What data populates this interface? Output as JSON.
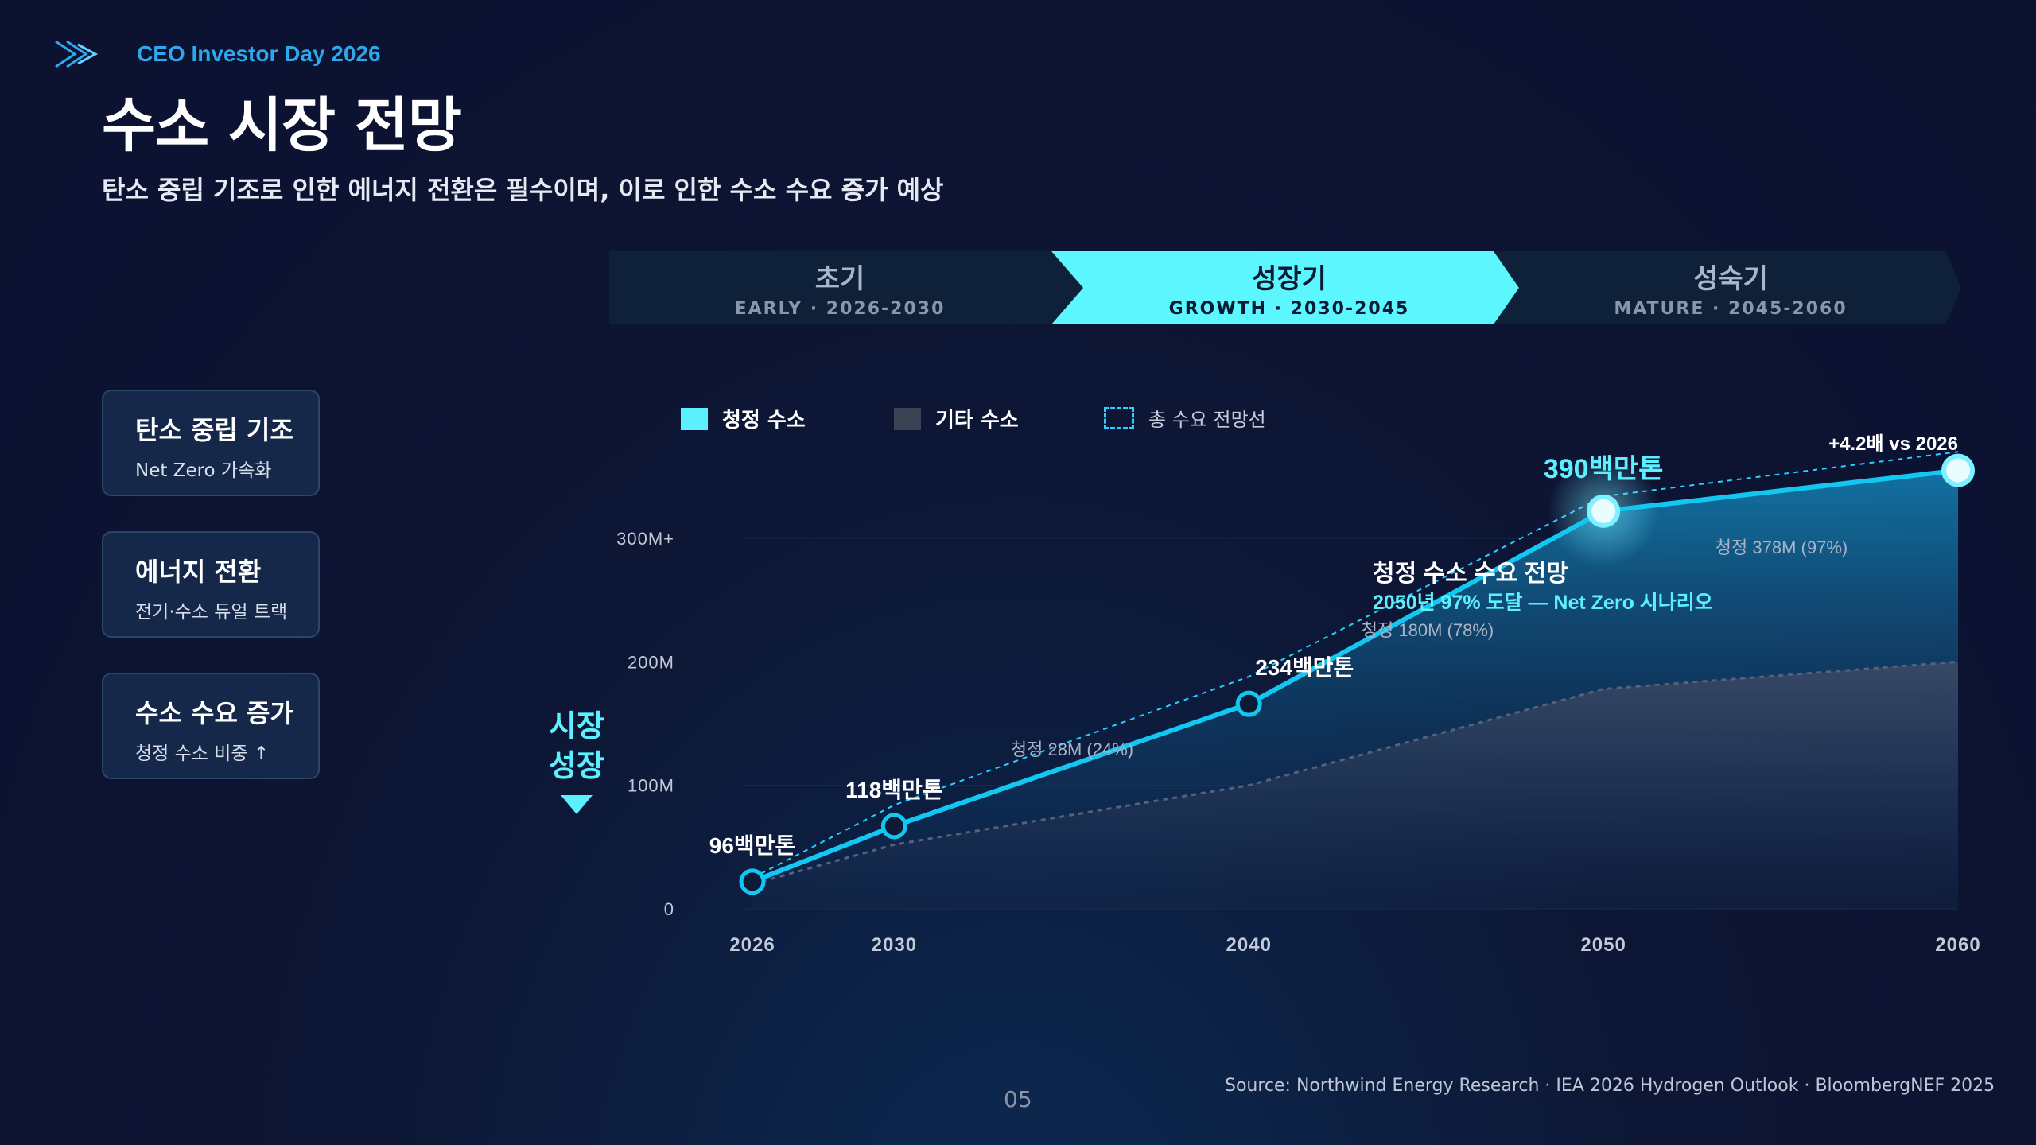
{
  "header": {
    "eyebrow": "CEO Investor Day 2026",
    "title": "수소 시장 전망",
    "subtitle": "탄소 중립 기조로 인한 에너지 전환은 필수이며, 이로 인한 수소 수요 증가 예상"
  },
  "phases": [
    {
      "name": "초기",
      "sub": "EARLY · 2026-2030",
      "active": false
    },
    {
      "name": "성장기",
      "sub": "GROWTH · 2030-2045",
      "active": true
    },
    {
      "name": "성숙기",
      "sub": "MATURE · 2045-2060",
      "active": false
    }
  ],
  "cards": [
    {
      "title": "탄소 중립 기조",
      "sub": "Net Zero 가속화"
    },
    {
      "title": "에너지 전환",
      "sub": "전기·수소 듀얼 트랙"
    },
    {
      "title": "수소 수요 증가",
      "sub": "청정 수소 비중 ↑"
    }
  ],
  "side_label": {
    "line1": "시장",
    "line2": "성장"
  },
  "legend": [
    {
      "label": "청정 수소",
      "color": "#5cf0ff"
    },
    {
      "label": "기타 수소",
      "color": "#3a4254"
    },
    {
      "label": "총 수요 전망선",
      "color": "#2ad0ff"
    }
  ],
  "chart_data": {
    "type": "line",
    "x": [
      2026,
      2030,
      2040,
      2050,
      2060
    ],
    "y_tick_labels": [
      "0",
      "100M",
      "200M",
      "300M+"
    ],
    "y_ticks": [
      0,
      100,
      200,
      300
    ],
    "ylim": [
      0,
      300
    ],
    "series": [
      {
        "name": "청정 수소",
        "values": [
          22,
          67,
          166,
          322,
          355
        ]
      },
      {
        "name": "기타 수소",
        "values": [
          20,
          52,
          100,
          178,
          200
        ]
      },
      {
        "name": "총 수요 전망선",
        "values": [
          25,
          84,
          188,
          334,
          370
        ]
      }
    ],
    "point_labels": [
      "96백만톤",
      "118백만톤",
      "234백만톤",
      "390백만톤",
      ""
    ],
    "clean_labels": [
      "청정 28M (24%)",
      "청정 180M (78%)",
      "청정 378M (97%)"
    ],
    "annotation_title": "청정 수소 수요 전망",
    "annotation_text": "2050년 97% 도달 — Net Zero 시나리오",
    "end_label": "+4.2배 vs 2026"
  },
  "footer": {
    "source": "Source: Northwind Energy Research · IEA 2026 Hydrogen Outlook · BloombergNEF 2025",
    "page": "05"
  }
}
